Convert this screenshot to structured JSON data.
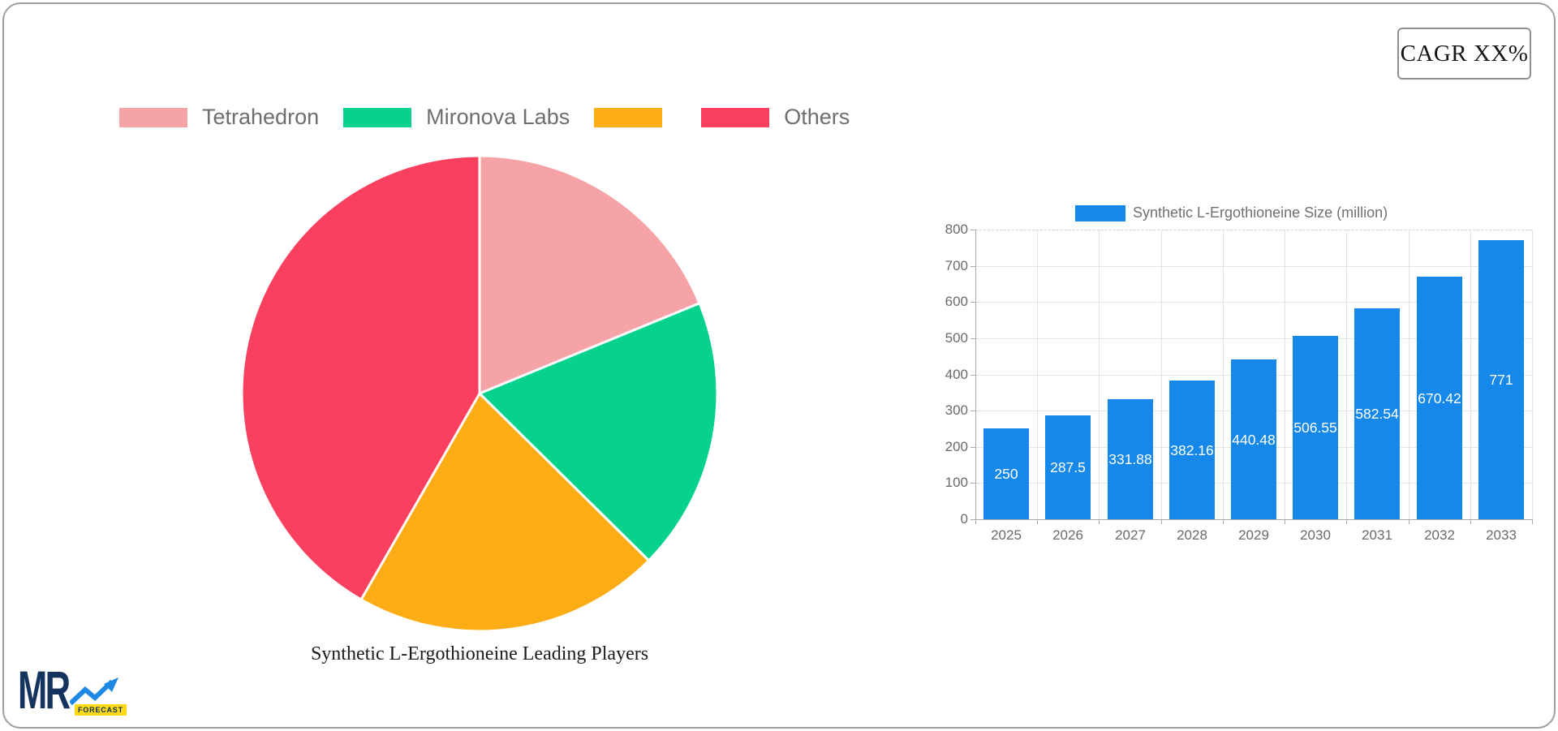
{
  "cagr_box": {
    "label": "CAGR XX%"
  },
  "logo": {
    "text": "MR",
    "badge_text": "FORECAST",
    "text_color": "#14335f",
    "arrow_color": "#1e88e5",
    "badge_bg": "#ffd915",
    "badge_text_color": "#0e2f57"
  },
  "chart_data": [
    {
      "type": "pie",
      "title": "Synthetic L-Ergothioneine Leading Players",
      "legend_position": "top",
      "direction": "clockwise",
      "start_angle_deg": 0,
      "labels": [
        "Tetrahedron",
        "Mironova Labs",
        "",
        "Others"
      ],
      "values_percent": [
        18.8,
        18.6,
        20.9,
        41.7
      ],
      "colors": [
        "#f5a3a7",
        "#07d28c",
        "#fcad16",
        "#fa3f5f"
      ]
    },
    {
      "type": "bar",
      "legend_label": "Synthetic L-Ergothioneine Size (million)",
      "categories": [
        "2025",
        "2026",
        "2027",
        "2028",
        "2029",
        "2030",
        "2031",
        "2032",
        "2033"
      ],
      "values": [
        250,
        287.5,
        331.88,
        382.16,
        440.48,
        506.55,
        582.54,
        670.42,
        771
      ],
      "value_labels": [
        "250",
        "287.5",
        "331.88",
        "382.16",
        "440.48",
        "506.55",
        "582.54",
        "670.42",
        "771"
      ],
      "bar_color": "#1688ea",
      "ylim": [
        0,
        800
      ],
      "ytick_step": 100,
      "grid": true,
      "legend_position": "top"
    }
  ]
}
